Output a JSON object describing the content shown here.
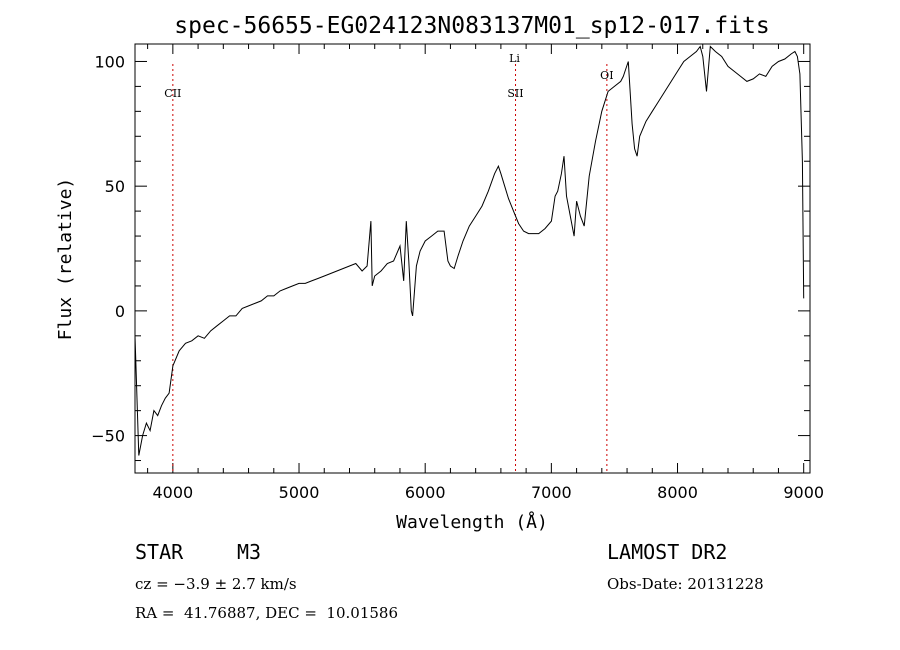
{
  "chart_data": {
    "type": "line",
    "title": "spec-56655-EG024123N083137M01_sp12-017.fits",
    "xlabel": "Wavelength (Å)",
    "ylabel": "Flux (relative)",
    "xlim": [
      3700,
      9050
    ],
    "ylim": [
      -65,
      107
    ],
    "x_ticks": [
      4000,
      5000,
      6000,
      7000,
      8000,
      9000
    ],
    "y_ticks": [
      -50,
      0,
      50,
      100
    ],
    "grid": false,
    "series": [
      {
        "x": [
          3700,
          3730,
          3760,
          3790,
          3820,
          3850,
          3880,
          3910,
          3940,
          3970,
          4000,
          4050,
          4100,
          4150,
          4200,
          4250,
          4300,
          4350,
          4400,
          4450,
          4500,
          4550,
          4600,
          4650,
          4700,
          4750,
          4800,
          4850,
          4900,
          4950,
          5000,
          5050,
          5100,
          5150,
          5200,
          5250,
          5300,
          5350,
          5400,
          5450,
          5500,
          5540,
          5570,
          5580,
          5600,
          5650,
          5700,
          5750,
          5800,
          5830,
          5850,
          5870,
          5890,
          5900,
          5930,
          5960,
          6000,
          6050,
          6100,
          6150,
          6180,
          6200,
          6230,
          6260,
          6300,
          6350,
          6400,
          6450,
          6500,
          6550,
          6580,
          6600,
          6630,
          6660,
          6700,
          6740,
          6780,
          6820,
          6860,
          6900,
          6950,
          7000,
          7030,
          7050,
          7080,
          7100,
          7120,
          7150,
          7180,
          7200,
          7230,
          7260,
          7300,
          7350,
          7400,
          7450,
          7500,
          7550,
          7570,
          7590,
          7610,
          7640,
          7660,
          7680,
          7700,
          7750,
          7800,
          7850,
          7900,
          7950,
          8000,
          8050,
          8100,
          8150,
          8180,
          8200,
          8230,
          8260,
          8300,
          8350,
          8400,
          8450,
          8500,
          8550,
          8600,
          8650,
          8700,
          8750,
          8800,
          8850,
          8900,
          8930,
          8950,
          8970,
          8990,
          9000
        ],
        "y": [
          -10,
          -58,
          -50,
          -45,
          -48,
          -40,
          -42,
          -38,
          -35,
          -33,
          -22,
          -16,
          -13,
          -12,
          -10,
          -11,
          -8,
          -6,
          -4,
          -2,
          -2,
          1,
          2,
          3,
          4,
          6,
          6,
          8,
          9,
          10,
          11,
          11,
          12,
          13,
          14,
          15,
          16,
          17,
          18,
          19,
          16,
          18,
          36,
          10,
          14,
          16,
          19,
          20,
          26,
          12,
          36,
          20,
          0,
          -2,
          18,
          24,
          28,
          30,
          32,
          32,
          20,
          18,
          17,
          22,
          28,
          34,
          38,
          42,
          48,
          55,
          58,
          55,
          50,
          45,
          40,
          35,
          32,
          31,
          31,
          31,
          33,
          36,
          46,
          48,
          55,
          62,
          46,
          38,
          30,
          44,
          38,
          34,
          54,
          68,
          80,
          88,
          90,
          92,
          94,
          97,
          100,
          75,
          65,
          62,
          70,
          76,
          80,
          84,
          88,
          92,
          96,
          100,
          102,
          104,
          106,
          102,
          88,
          106,
          104,
          102,
          98,
          96,
          94,
          92,
          93,
          95,
          94,
          98,
          100,
          101,
          103,
          104,
          102,
          95,
          60,
          5
        ]
      }
    ],
    "annotations": [
      {
        "label": "CII",
        "x": 4000
      },
      {
        "label": "SII",
        "x": 6716
      },
      {
        "label": "Li",
        "x": 6708
      },
      {
        "label": "OI",
        "x": 7440
      }
    ]
  },
  "info": {
    "star_class": "STAR",
    "subclass": "M3",
    "survey": "LAMOST DR2",
    "cz_text": "cz = −3.9 ± 2.7 km/s",
    "obs_date": "Obs-Date: 20131228",
    "radec_text": "RA =  41.76887, DEC =  10.01586"
  },
  "colors": {
    "line": "#000000",
    "annotation_line": "#cc0000"
  }
}
